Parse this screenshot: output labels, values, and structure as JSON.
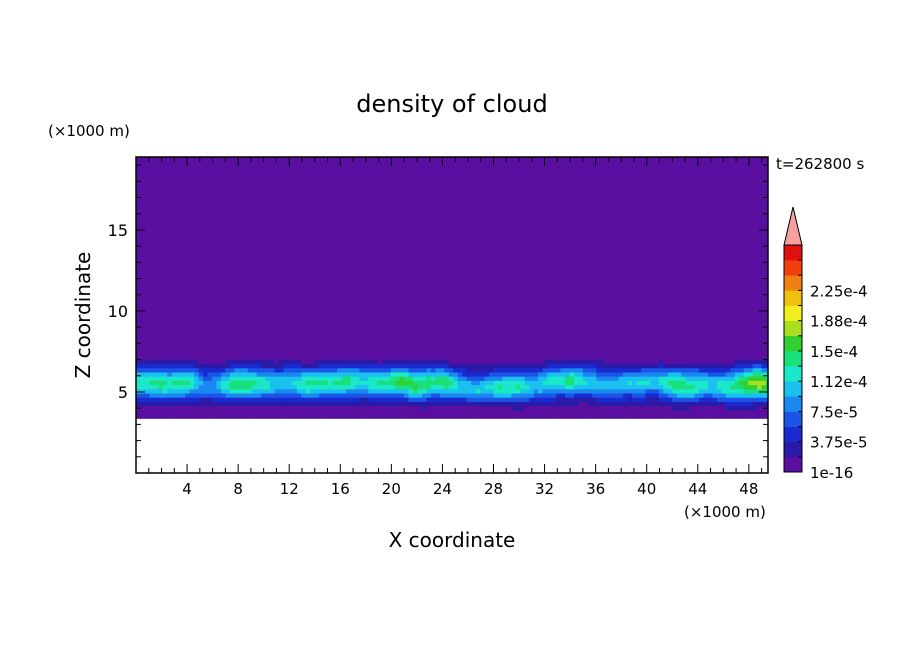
{
  "chart_data": {
    "type": "heatmap",
    "title": "density of cloud",
    "xlabel": "X coordinate",
    "ylabel": "Z coordinate",
    "x_unit": "(×1000 m)",
    "y_unit": "(×1000 m)",
    "time_label": "t=262800 s",
    "xlim": [
      0,
      49.5
    ],
    "ylim": [
      0,
      19.5
    ],
    "x_ticks": [
      4,
      8,
      12,
      16,
      20,
      24,
      28,
      32,
      36,
      40,
      44,
      48
    ],
    "y_ticks": [
      5,
      10,
      15
    ],
    "colorbar": {
      "levels": [
        0,
        1.875e-05,
        3.75e-05,
        5.625e-05,
        7.5e-05,
        9.375e-05,
        0.0001125,
        0.00013125,
        0.00015,
        0.00016875,
        0.0001875,
        0.00020625,
        0.000225,
        0.00024375
      ],
      "tick_labels": [
        "1e-16",
        "3.75e-5",
        "7.5e-5",
        "1.12e-4",
        "1.5e-4",
        "1.88e-4",
        "2.25e-4"
      ],
      "colors": [
        "#5a0fa0",
        "#2a1aa8",
        "#1a2ad0",
        "#1a55e8",
        "#1a88f0",
        "#1ac0f0",
        "#1ae8c8",
        "#1ae07a",
        "#30d030",
        "#a8e020",
        "#f0f020",
        "#f0c010",
        "#f08010",
        "#f04010",
        "#e01010"
      ],
      "extend_color": "#f4a0a0"
    }
  }
}
